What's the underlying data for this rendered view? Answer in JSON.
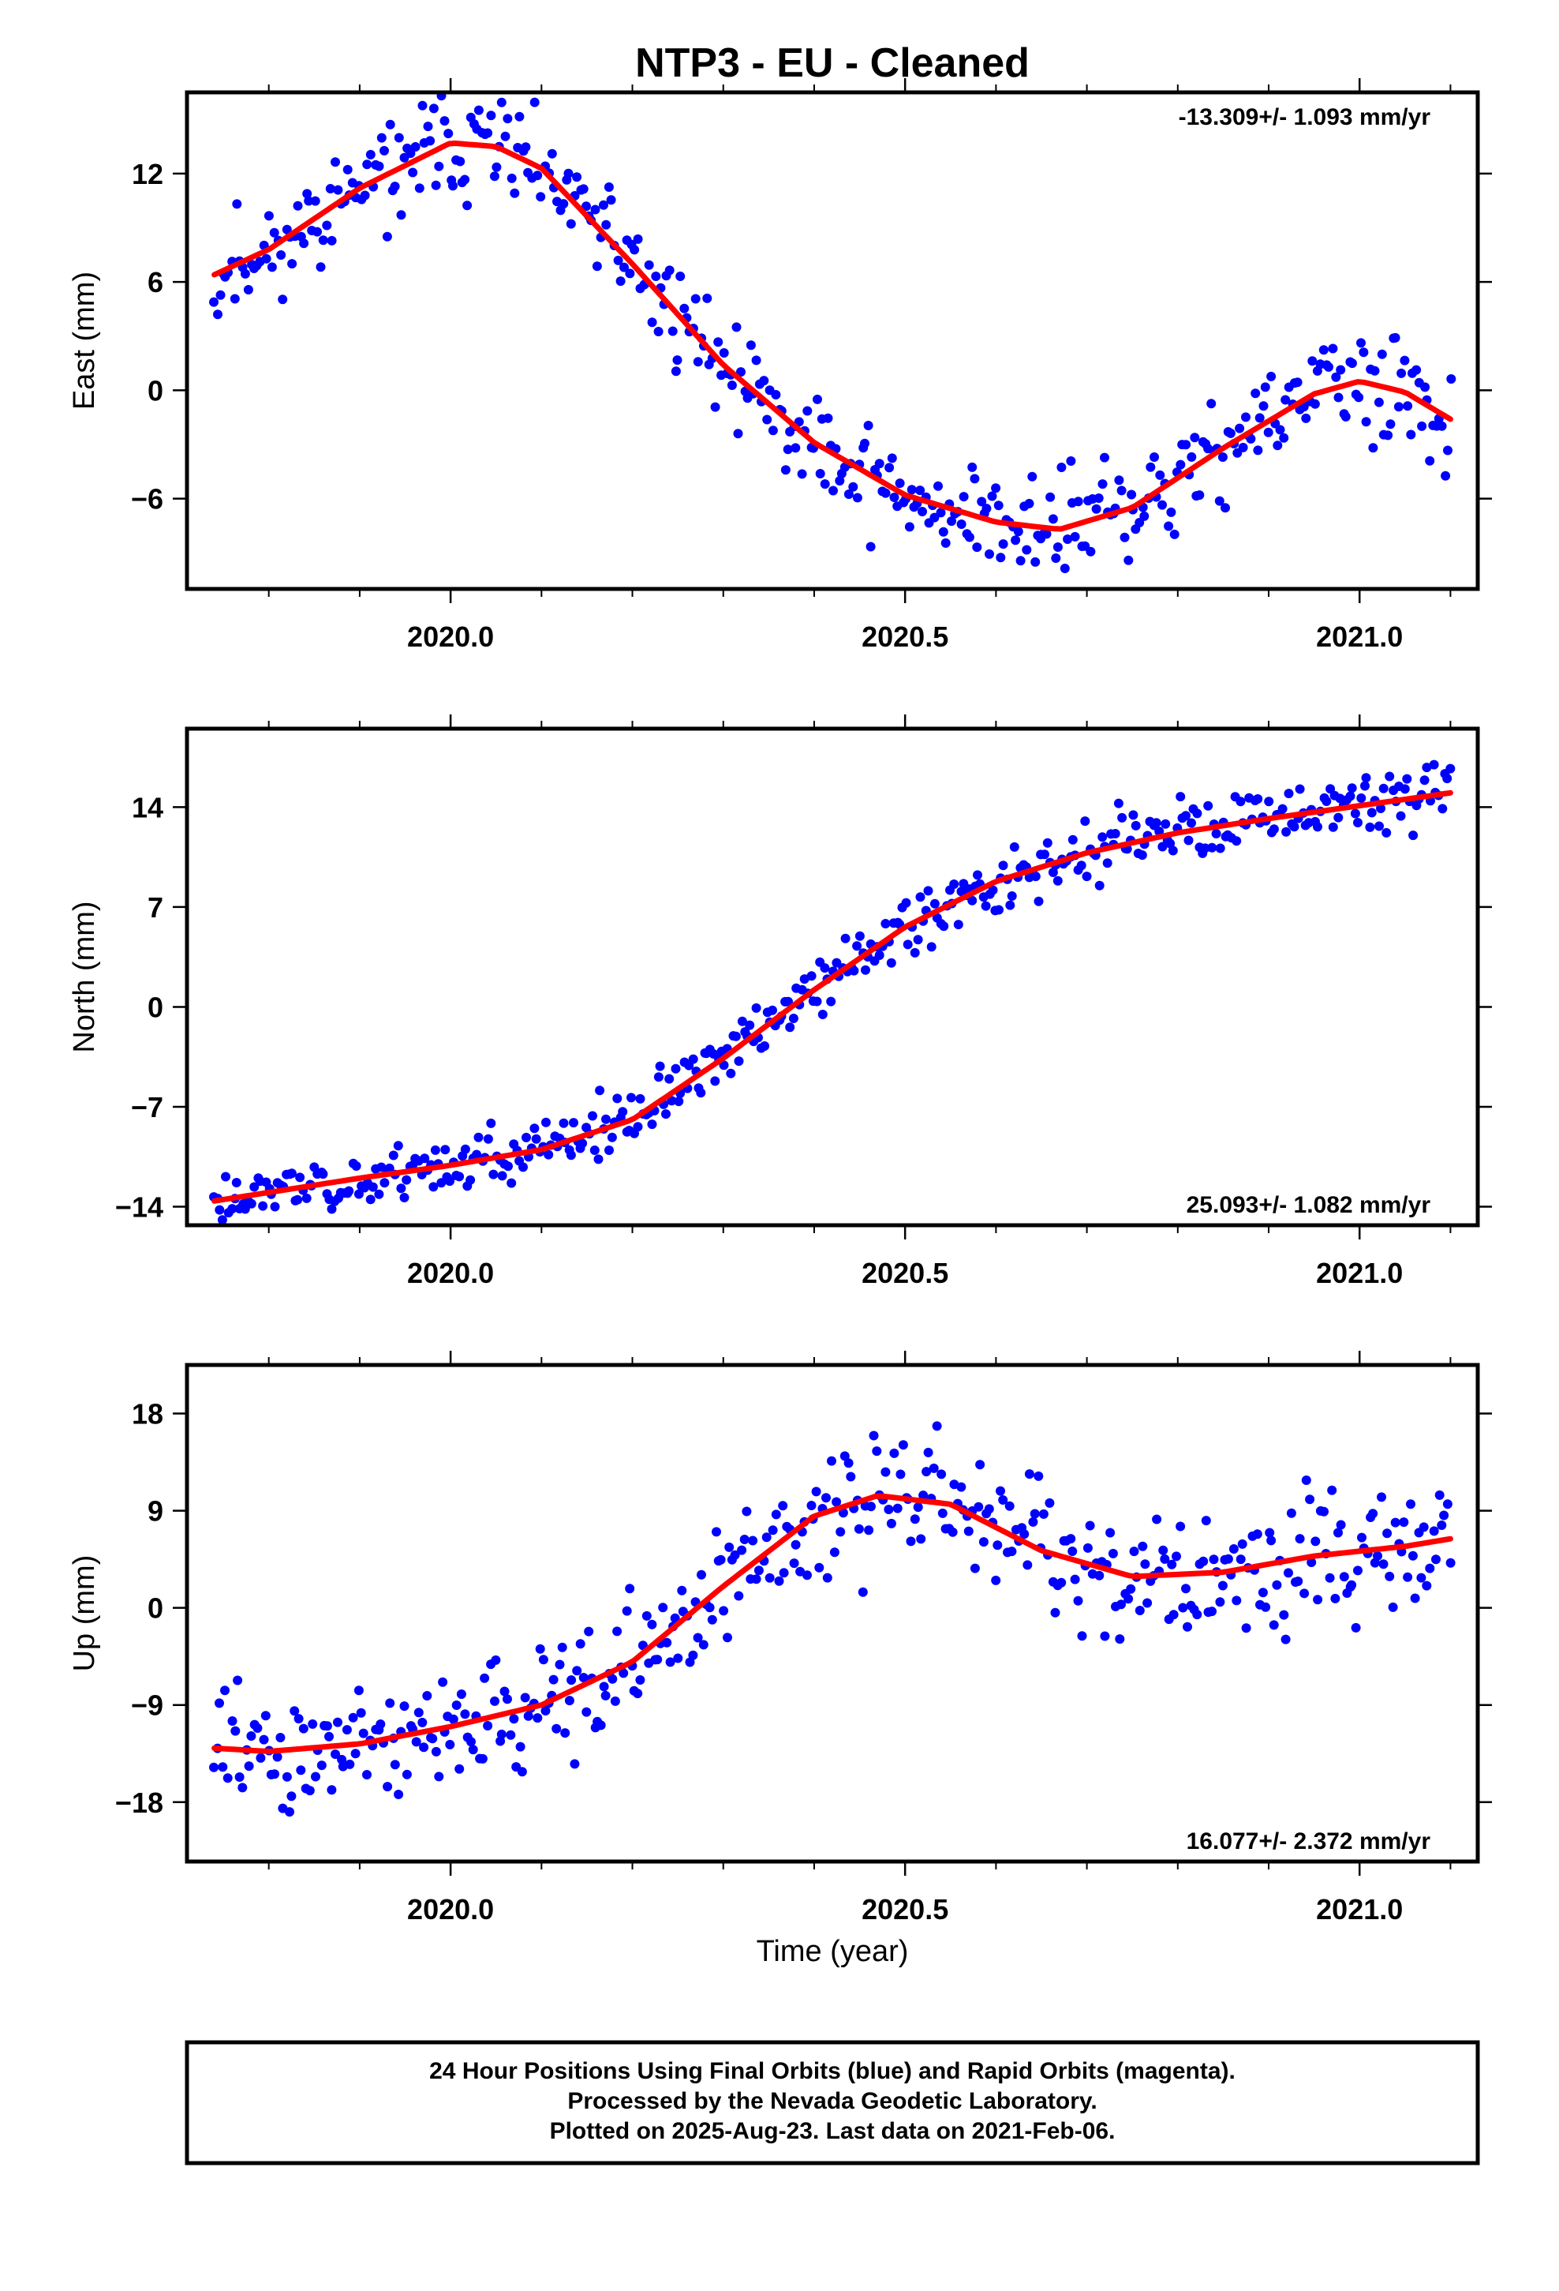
{
  "title": "NTP3  - EU - Cleaned",
  "xlabel": "Time (year)",
  "footer": {
    "line1": "24 Hour Positions Using Final Orbits (blue) and Rapid Orbits (magenta).",
    "line2": "Processed by the Nevada Geodetic Laboratory.",
    "line3": "Plotted on 2025-Aug-23. Last data on 2021-Feb-06."
  },
  "colors": {
    "points": "#0000ff",
    "fit": "#ff0000",
    "frame": "#000000"
  },
  "chart_data": [
    {
      "type": "scatter",
      "ylabel": "East (mm)",
      "rate": "-13.309+/- 1.093 mm/yr",
      "rate_position": "top-right",
      "xlim": [
        2019.71,
        2021.13
      ],
      "ylim": [
        -11.0,
        16.5
      ],
      "x_ticks": [
        "2020.0",
        "2020.5",
        "2021.0"
      ],
      "y_ticks": [
        "12",
        "6",
        "0",
        "−6"
      ],
      "y_tick_values": [
        12,
        6,
        0,
        -6
      ],
      "data_range": [
        2019.74,
        2021.1
      ],
      "fit": {
        "x": [
          2019.74,
          2019.8,
          2019.9,
          2020.0,
          2020.05,
          2020.1,
          2020.2,
          2020.3,
          2020.4,
          2020.5,
          2020.6,
          2020.67,
          2020.75,
          2020.85,
          2020.95,
          2021.0,
          2021.05,
          2021.1
        ],
        "y": [
          6.4,
          7.8,
          11.2,
          13.7,
          13.5,
          12.3,
          7.0,
          1.4,
          -2.9,
          -5.8,
          -7.3,
          -7.7,
          -6.5,
          -3.2,
          -0.2,
          0.5,
          -0.1,
          -1.6
        ]
      },
      "scatter_sd": 1.5,
      "seed": 11
    },
    {
      "type": "scatter",
      "ylabel": "North (mm)",
      "rate": "25.093+/- 1.082 mm/yr",
      "rate_position": "bottom-right",
      "xlim": [
        2019.71,
        2021.13
      ],
      "ylim": [
        -15.3,
        19.5
      ],
      "x_ticks": [
        "2020.0",
        "2020.5",
        "2021.0"
      ],
      "y_ticks": [
        "14",
        "7",
        "0",
        "−7",
        "−14"
      ],
      "y_tick_values": [
        14,
        7,
        0,
        -7,
        -14
      ],
      "data_range": [
        2019.74,
        2021.1
      ],
      "fit": {
        "x": [
          2019.74,
          2019.8,
          2019.9,
          2020.0,
          2020.1,
          2020.2,
          2020.3,
          2020.4,
          2020.5,
          2020.6,
          2020.7,
          2020.8,
          2020.9,
          2021.0,
          2021.1
        ],
        "y": [
          -13.6,
          -13.0,
          -12.0,
          -11.1,
          -10.0,
          -7.9,
          -3.6,
          1.2,
          5.6,
          8.8,
          10.8,
          12.2,
          13.2,
          14.1,
          15.0
        ],
        "drift": {
          "after": 2021.03,
          "per_year": 25
        }
      },
      "scatter_sd": 1.0,
      "seed": 23
    },
    {
      "type": "scatter",
      "ylabel": "Up (mm)",
      "rate": "16.077+/- 2.372 mm/yr",
      "rate_position": "bottom-right",
      "xlim": [
        2019.71,
        2021.13
      ],
      "ylim": [
        -23.5,
        22.5
      ],
      "x_ticks": [
        "2020.0",
        "2020.5",
        "2021.0"
      ],
      "y_ticks": [
        "18",
        "9",
        "0",
        "−9",
        "−18"
      ],
      "y_tick_values": [
        18,
        9,
        0,
        -9,
        -18
      ],
      "data_range": [
        2019.74,
        2021.1
      ],
      "fit": {
        "x": [
          2019.74,
          2019.8,
          2019.9,
          2020.0,
          2020.1,
          2020.2,
          2020.3,
          2020.4,
          2020.47,
          2020.55,
          2020.65,
          2020.75,
          2020.85,
          2020.95,
          2021.05,
          2021.1
        ],
        "y": [
          -13.0,
          -13.3,
          -12.6,
          -11.0,
          -9.0,
          -5.0,
          2.0,
          8.5,
          10.4,
          9.6,
          5.3,
          2.9,
          3.3,
          4.8,
          5.7,
          6.4
        ]
      },
      "scatter_sd": 3.0,
      "seed": 47
    }
  ]
}
